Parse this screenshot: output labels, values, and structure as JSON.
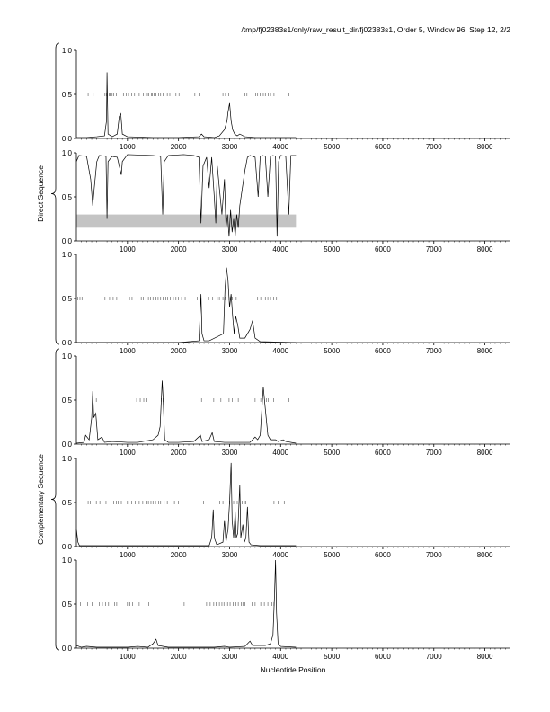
{
  "header": "/tmp/fj02383s1/only/raw_result_dir/fj02383s1, Order 5, Window 96, Step 12, 2/2",
  "chart_data": {
    "type": "line",
    "xlabel": "Nucleotide Position",
    "xlim": [
      0,
      8500
    ],
    "ylim": [
      0,
      1.0
    ],
    "x_ticks": [
      1000,
      2000,
      3000,
      4000,
      5000,
      6000,
      7000,
      8000
    ],
    "y_ticks": [
      0.0,
      0.5,
      1.0
    ],
    "y_tick_labels": [
      "0.0",
      "0.5",
      "1.0"
    ],
    "groups": [
      {
        "label": "Direct Sequence",
        "panels": [
          0,
          1,
          2
        ]
      },
      {
        "label": "Complementary Sequence",
        "panels": [
          3,
          4,
          5
        ]
      }
    ],
    "panels": [
      {
        "index": 0,
        "line": [
          [
            0,
            0.01
          ],
          [
            200,
            0.01
          ],
          [
            400,
            0.02
          ],
          [
            550,
            0.03
          ],
          [
            590,
            0.2
          ],
          [
            600,
            0.75
          ],
          [
            620,
            0.05
          ],
          [
            700,
            0.02
          ],
          [
            800,
            0.05
          ],
          [
            840,
            0.25
          ],
          [
            870,
            0.28
          ],
          [
            900,
            0.05
          ],
          [
            1000,
            0.02
          ],
          [
            1500,
            0.01
          ],
          [
            2000,
            0.01
          ],
          [
            2400,
            0.02
          ],
          [
            2450,
            0.05
          ],
          [
            2500,
            0.02
          ],
          [
            2700,
            0.01
          ],
          [
            2800,
            0.03
          ],
          [
            2900,
            0.1
          ],
          [
            2950,
            0.2
          ],
          [
            2970,
            0.3
          ],
          [
            3000,
            0.4
          ],
          [
            3030,
            0.2
          ],
          [
            3060,
            0.1
          ],
          [
            3100,
            0.05
          ],
          [
            3150,
            0.03
          ],
          [
            3200,
            0.05
          ],
          [
            3300,
            0.02
          ],
          [
            3500,
            0.01
          ],
          [
            4000,
            0.01
          ],
          [
            4300,
            0.01
          ]
        ],
        "ticks_at_half": [
          150,
          230,
          330,
          560,
          590,
          640,
          660,
          700,
          730,
          780,
          920,
          980,
          1020,
          1080,
          1140,
          1190,
          1230,
          1310,
          1360,
          1390,
          1420,
          1470,
          1490,
          1520,
          1560,
          1610,
          1650,
          1700,
          1780,
          1830,
          1950,
          2010,
          2320,
          2400,
          2870,
          2920,
          2980,
          3300,
          3340,
          3460,
          3510,
          3550,
          3600,
          3660,
          3700,
          3760,
          3800,
          3870,
          4160
        ]
      },
      {
        "index": 1,
        "band": {
          "from": 0,
          "to": 4300,
          "y_low": 0.15,
          "y_high": 0.3
        },
        "line": [
          [
            0,
            0.9
          ],
          [
            50,
            0.97
          ],
          [
            200,
            0.96
          ],
          [
            280,
            0.7
          ],
          [
            320,
            0.4
          ],
          [
            350,
            0.6
          ],
          [
            400,
            0.9
          ],
          [
            450,
            0.97
          ],
          [
            580,
            0.96
          ],
          [
            600,
            0.25
          ],
          [
            620,
            0.9
          ],
          [
            700,
            0.96
          ],
          [
            800,
            0.95
          ],
          [
            880,
            0.75
          ],
          [
            900,
            0.9
          ],
          [
            1000,
            0.98
          ],
          [
            1500,
            0.97
          ],
          [
            1650,
            0.96
          ],
          [
            1690,
            0.3
          ],
          [
            1720,
            0.9
          ],
          [
            1800,
            0.97
          ],
          [
            2100,
            0.98
          ],
          [
            2300,
            0.97
          ],
          [
            2400,
            0.95
          ],
          [
            2440,
            0.2
          ],
          [
            2480,
            0.85
          ],
          [
            2550,
            0.95
          ],
          [
            2600,
            0.6
          ],
          [
            2650,
            0.95
          ],
          [
            2700,
            0.5
          ],
          [
            2730,
            0.2
          ],
          [
            2760,
            0.85
          ],
          [
            2800,
            0.6
          ],
          [
            2850,
            0.3
          ],
          [
            2900,
            0.7
          ],
          [
            2930,
            0.15
          ],
          [
            2960,
            0.3
          ],
          [
            2990,
            0.05
          ],
          [
            3020,
            0.35
          ],
          [
            3050,
            0.1
          ],
          [
            3080,
            0.25
          ],
          [
            3110,
            0.05
          ],
          [
            3140,
            0.3
          ],
          [
            3170,
            0.15
          ],
          [
            3200,
            0.4
          ],
          [
            3250,
            0.6
          ],
          [
            3300,
            0.8
          ],
          [
            3350,
            0.95
          ],
          [
            3400,
            0.97
          ],
          [
            3500,
            0.95
          ],
          [
            3560,
            0.5
          ],
          [
            3600,
            0.96
          ],
          [
            3650,
            0.97
          ],
          [
            3700,
            0.96
          ],
          [
            3750,
            0.5
          ],
          [
            3800,
            0.96
          ],
          [
            3850,
            0.97
          ],
          [
            3900,
            0.96
          ],
          [
            3930,
            0.05
          ],
          [
            3960,
            0.9
          ],
          [
            4000,
            0.97
          ],
          [
            4100,
            0.96
          ],
          [
            4160,
            0.3
          ],
          [
            4200,
            0.97
          ],
          [
            4300,
            0.97
          ]
        ],
        "ticks_at_half": []
      },
      {
        "index": 2,
        "line": [
          [
            0,
            0.0
          ],
          [
            2000,
            0.0
          ],
          [
            2400,
            0.02
          ],
          [
            2440,
            0.55
          ],
          [
            2460,
            0.1
          ],
          [
            2500,
            0.02
          ],
          [
            2600,
            0.02
          ],
          [
            2880,
            0.1
          ],
          [
            2910,
            0.6
          ],
          [
            2940,
            0.85
          ],
          [
            2970,
            0.7
          ],
          [
            3000,
            0.4
          ],
          [
            3030,
            0.55
          ],
          [
            3060,
            0.3
          ],
          [
            3090,
            0.1
          ],
          [
            3120,
            0.3
          ],
          [
            3160,
            0.2
          ],
          [
            3200,
            0.05
          ],
          [
            3300,
            0.05
          ],
          [
            3400,
            0.15
          ],
          [
            3450,
            0.25
          ],
          [
            3500,
            0.05
          ],
          [
            3600,
            0.01
          ],
          [
            4300,
            0.0
          ]
        ],
        "ticks_at_half": [
          30,
          70,
          110,
          150,
          500,
          560,
          650,
          720,
          790,
          1040,
          1090,
          1270,
          1310,
          1360,
          1410,
          1450,
          1500,
          1560,
          1600,
          1650,
          1700,
          1750,
          1790,
          1840,
          1900,
          1950,
          2000,
          2060,
          2130,
          2370,
          2590,
          2670,
          2760,
          2800,
          2870,
          2920,
          2990,
          3020,
          3050,
          3130,
          3550,
          3610,
          3700,
          3750,
          3800,
          3860,
          3920
        ]
      },
      {
        "index": 3,
        "line": [
          [
            0,
            0.01
          ],
          [
            150,
            0.02
          ],
          [
            180,
            0.1
          ],
          [
            250,
            0.05
          ],
          [
            300,
            0.3
          ],
          [
            320,
            0.6
          ],
          [
            340,
            0.3
          ],
          [
            380,
            0.35
          ],
          [
            420,
            0.05
          ],
          [
            500,
            0.08
          ],
          [
            550,
            0.02
          ],
          [
            700,
            0.03
          ],
          [
            1000,
            0.02
          ],
          [
            1200,
            0.02
          ],
          [
            1500,
            0.05
          ],
          [
            1600,
            0.1
          ],
          [
            1640,
            0.2
          ],
          [
            1680,
            0.72
          ],
          [
            1700,
            0.5
          ],
          [
            1730,
            0.05
          ],
          [
            1800,
            0.02
          ],
          [
            2000,
            0.02
          ],
          [
            2300,
            0.03
          ],
          [
            2430,
            0.1
          ],
          [
            2460,
            0.03
          ],
          [
            2600,
            0.05
          ],
          [
            2660,
            0.13
          ],
          [
            2700,
            0.03
          ],
          [
            2900,
            0.02
          ],
          [
            3400,
            0.02
          ],
          [
            3500,
            0.08
          ],
          [
            3550,
            0.05
          ],
          [
            3600,
            0.1
          ],
          [
            3660,
            0.65
          ],
          [
            3700,
            0.4
          ],
          [
            3750,
            0.1
          ],
          [
            3800,
            0.05
          ],
          [
            3900,
            0.05
          ],
          [
            3950,
            0.03
          ],
          [
            4050,
            0.05
          ],
          [
            4100,
            0.03
          ],
          [
            4300,
            0.01
          ]
        ],
        "ticks_at_half": [
          320,
          390,
          500,
          680,
          1180,
          1250,
          1320,
          1380,
          1660,
          1700,
          2450,
          2690,
          2830,
          2990,
          3050,
          3110,
          3170,
          3500,
          3610,
          3720,
          3760,
          3810,
          3860,
          4160
        ]
      },
      {
        "index": 4,
        "line": [
          [
            0,
            0.2
          ],
          [
            30,
            0.05
          ],
          [
            60,
            0.01
          ],
          [
            500,
            0.01
          ],
          [
            1000,
            0.01
          ],
          [
            2000,
            0.01
          ],
          [
            2600,
            0.01
          ],
          [
            2650,
            0.1
          ],
          [
            2680,
            0.42
          ],
          [
            2700,
            0.1
          ],
          [
            2750,
            0.02
          ],
          [
            2870,
            0.05
          ],
          [
            2900,
            0.3
          ],
          [
            2930,
            0.05
          ],
          [
            2970,
            0.2
          ],
          [
            3000,
            0.5
          ],
          [
            3030,
            0.95
          ],
          [
            3050,
            0.3
          ],
          [
            3080,
            0.1
          ],
          [
            3110,
            0.4
          ],
          [
            3130,
            0.1
          ],
          [
            3160,
            0.15
          ],
          [
            3200,
            0.7
          ],
          [
            3220,
            0.1
          ],
          [
            3260,
            0.25
          ],
          [
            3290,
            0.05
          ],
          [
            3320,
            0.1
          ],
          [
            3350,
            0.45
          ],
          [
            3380,
            0.05
          ],
          [
            3420,
            0.02
          ],
          [
            3600,
            0.01
          ],
          [
            4300,
            0.01
          ]
        ],
        "ticks_at_half": [
          230,
          270,
          390,
          460,
          580,
          730,
          780,
          820,
          880,
          1000,
          1080,
          1150,
          1230,
          1300,
          1380,
          1410,
          1460,
          1500,
          1550,
          1610,
          1650,
          1720,
          1780,
          1920,
          2000,
          2490,
          2580,
          2810,
          2870,
          2930,
          3000,
          3080,
          3150,
          3250,
          3290,
          3320,
          3810,
          3870,
          3950,
          4070
        ]
      },
      {
        "index": 5,
        "line": [
          [
            0,
            0.03
          ],
          [
            100,
            0.01
          ],
          [
            200,
            0.02
          ],
          [
            400,
            0.01
          ],
          [
            1000,
            0.01
          ],
          [
            1200,
            0.02
          ],
          [
            1400,
            0.01
          ],
          [
            1500,
            0.05
          ],
          [
            1560,
            0.1
          ],
          [
            1600,
            0.03
          ],
          [
            1800,
            0.01
          ],
          [
            2000,
            0.01
          ],
          [
            2700,
            0.01
          ],
          [
            2900,
            0.02
          ],
          [
            3000,
            0.01
          ],
          [
            3300,
            0.02
          ],
          [
            3400,
            0.08
          ],
          [
            3450,
            0.03
          ],
          [
            3700,
            0.03
          ],
          [
            3800,
            0.05
          ],
          [
            3850,
            0.15
          ],
          [
            3880,
            0.6
          ],
          [
            3900,
            1.0
          ],
          [
            3920,
            0.4
          ],
          [
            3950,
            0.05
          ],
          [
            4000,
            0.02
          ],
          [
            4300,
            0.01
          ]
        ],
        "ticks_at_half": [
          80,
          220,
          310,
          450,
          510,
          570,
          630,
          680,
          750,
          790,
          1000,
          1050,
          1100,
          1230,
          1420,
          2110,
          2550,
          2620,
          2690,
          2740,
          2800,
          2850,
          2890,
          2960,
          3010,
          3070,
          3120,
          3170,
          3230,
          3260,
          3300,
          3440,
          3500,
          3610,
          3680,
          3750,
          3830,
          3870
        ]
      }
    ]
  }
}
